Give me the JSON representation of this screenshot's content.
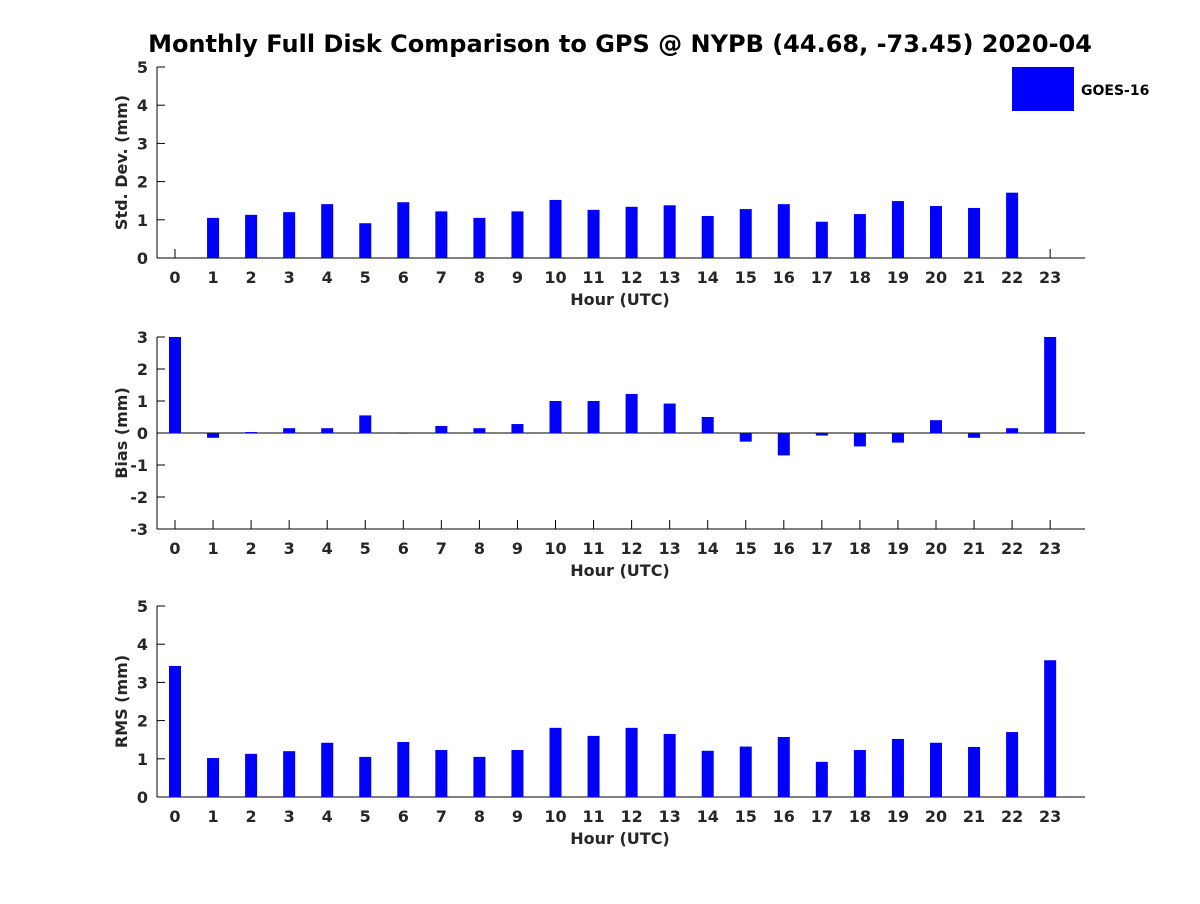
{
  "figure": {
    "title": "Monthly Full Disk Comparison to GPS @ NYPB (44.68, -73.45) 2020-04"
  },
  "legend": {
    "label": "GOES-16",
    "color": "#0000ff",
    "placement": "top-right"
  },
  "chart_data": [
    {
      "type": "bar",
      "xlabel": "Hour (UTC)",
      "ylabel": "Std. Dev. (mm)",
      "ylim": [
        0,
        5
      ],
      "yticks": [
        0,
        1,
        2,
        3,
        4,
        5
      ],
      "grid": false,
      "categories": [
        "0",
        "1",
        "2",
        "3",
        "4",
        "5",
        "6",
        "7",
        "8",
        "9",
        "10",
        "11",
        "12",
        "13",
        "14",
        "15",
        "16",
        "17",
        "18",
        "19",
        "20",
        "21",
        "22",
        "23"
      ],
      "series": [
        {
          "name": "GOES-16",
          "values": [
            0,
            1.05,
            1.13,
            1.2,
            1.41,
            0.91,
            1.46,
            1.22,
            1.05,
            1.22,
            1.52,
            1.26,
            1.34,
            1.38,
            1.1,
            1.28,
            1.41,
            0.95,
            1.15,
            1.49,
            1.36,
            1.31,
            1.71,
            0
          ]
        }
      ]
    },
    {
      "type": "bar",
      "xlabel": "Hour (UTC)",
      "ylabel": "Bias (mm)",
      "ylim": [
        -3,
        3
      ],
      "yticks": [
        -3,
        -2,
        -1,
        0,
        1,
        2,
        3
      ],
      "grid": false,
      "categories": [
        "0",
        "1",
        "2",
        "3",
        "4",
        "5",
        "6",
        "7",
        "8",
        "9",
        "10",
        "11",
        "12",
        "13",
        "14",
        "15",
        "16",
        "17",
        "18",
        "19",
        "20",
        "21",
        "22",
        "23"
      ],
      "series": [
        {
          "name": "GOES-16",
          "values": [
            3.0,
            -0.15,
            0.03,
            0.15,
            0.15,
            0.55,
            -0.02,
            0.22,
            0.15,
            0.28,
            1.0,
            1.0,
            1.22,
            0.92,
            0.5,
            -0.27,
            -0.7,
            -0.08,
            -0.42,
            -0.3,
            0.4,
            -0.15,
            0.15,
            3.0
          ]
        }
      ]
    },
    {
      "type": "bar",
      "xlabel": "Hour (UTC)",
      "ylabel": "RMS (mm)",
      "ylim": [
        0,
        5
      ],
      "yticks": [
        0,
        1,
        2,
        3,
        4,
        5
      ],
      "grid": false,
      "categories": [
        "0",
        "1",
        "2",
        "3",
        "4",
        "5",
        "6",
        "7",
        "8",
        "9",
        "10",
        "11",
        "12",
        "13",
        "14",
        "15",
        "16",
        "17",
        "18",
        "19",
        "20",
        "21",
        "22",
        "23"
      ],
      "series": [
        {
          "name": "GOES-16",
          "values": [
            3.43,
            1.02,
            1.13,
            1.2,
            1.42,
            1.05,
            1.44,
            1.23,
            1.05,
            1.23,
            1.81,
            1.6,
            1.81,
            1.65,
            1.21,
            1.32,
            1.57,
            0.92,
            1.23,
            1.52,
            1.42,
            1.31,
            1.7,
            3.58
          ]
        }
      ]
    }
  ]
}
